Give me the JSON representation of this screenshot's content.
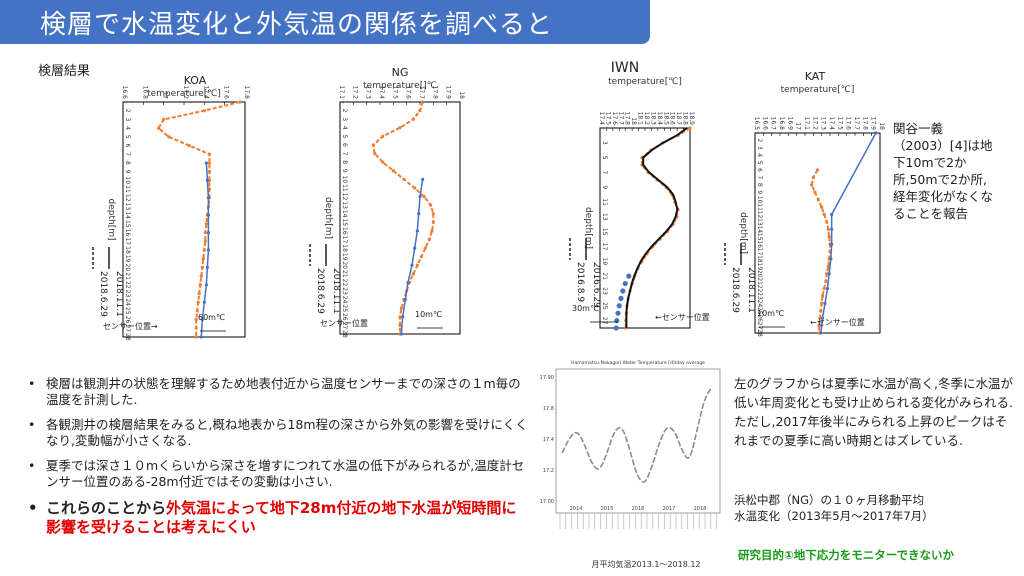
{
  "slide": {
    "title": "検層で水温変化と外気温の関係を調べると",
    "section_label": "検層結果",
    "side_note": "関谷一義（2003）[4]は地下10mで2か所,50mで2か所,経年変化がなくなることを報告",
    "bullets": [
      "検層は観測井の状態を理解するため地表付近から温度センサーまでの深さの１m毎の温度を計測した.",
      "各観測井の検層結果をみると,概ね地表から18m程の深さから外気の影響を受けにくくなり,変動幅が小さくなる.",
      "夏季では深さ１０mくらいから深さを増すにつれて水温の低下がみられるが,温度計センサー位置のある-28m付近ではその変動は小さい."
    ],
    "bullet_emph": {
      "before": "これらのことから",
      "highlight": "外気温によって地下28m付近の地下水温が短時間に影響を受けることは考えにくい"
    },
    "right_text": "左のグラフからは夏季に水温が高く,冬季に水温が低い年周変化とも受け止められる変化がみられる.ただし,2017年後半にみられる上昇のピークはそれまでの夏季に高い時期とはズレている.",
    "caption_line1": "浜松中郡（NG）の１０ヶ月移動平均",
    "caption_line2": "水温変化（2013年5月～2017年7月）",
    "footer": "研究目的①地下応力をモニターできないか"
  },
  "colors": {
    "title_bg": "#4472c4",
    "orange": "#ed7d31",
    "blue": "#4472c4",
    "black": "#111111",
    "gray_line": "#8c8c8c",
    "emphasis_red": "#e00000",
    "footer_green": "#1a9a1a"
  },
  "chart_data": [
    {
      "type": "line",
      "name": "KOA",
      "title": "KOA",
      "xlabel": "temperature[℃]",
      "ylabel": "depth[m]",
      "x_ticks": [
        "16.6",
        "16.8",
        "17",
        "17.2",
        "17.4",
        "17.6",
        "17.8"
      ],
      "xlim": [
        16.6,
        17.8
      ],
      "ylim": [
        1,
        28
      ],
      "legend": [
        "2018.6.29",
        "2018.11.1"
      ],
      "annotations": {
        "sensor": "センサー位置→",
        "delta": "60m℃"
      },
      "series": [
        {
          "name": "2018.6.29",
          "style": "orange-dashed",
          "depth": [
            1,
            2,
            3,
            4,
            5,
            6,
            7,
            8,
            9,
            10,
            11,
            12,
            13,
            14,
            15,
            16,
            17,
            18,
            19,
            20,
            21,
            22,
            23,
            24,
            25,
            26,
            27,
            28
          ],
          "temp": [
            17.75,
            17.4,
            17.0,
            16.95,
            17.05,
            17.25,
            17.45,
            17.45,
            17.45,
            17.45,
            17.45,
            17.45,
            17.44,
            17.43,
            17.42,
            17.41,
            17.41,
            17.4,
            17.39,
            17.38,
            17.37,
            17.36,
            17.35,
            17.34,
            17.33,
            17.32,
            17.32,
            17.32
          ]
        },
        {
          "name": "2018.11.1",
          "style": "blue-solid",
          "depth": [
            8,
            10,
            12,
            14,
            16,
            18,
            20,
            22,
            24,
            26,
            28
          ],
          "temp": [
            17.42,
            17.43,
            17.44,
            17.44,
            17.44,
            17.44,
            17.43,
            17.42,
            17.4,
            17.38,
            17.37
          ]
        }
      ]
    },
    {
      "type": "line",
      "name": "NG",
      "title": "NG",
      "xlabel": "temperature[]℃",
      "ylabel": "depth[m]",
      "x_ticks": [
        "17.1",
        "17.2",
        "17.3",
        "17.4",
        "17.5",
        "17.6",
        "17.7",
        "17.8",
        "17.9",
        "18"
      ],
      "xlim": [
        17.1,
        18.0
      ],
      "ylim": [
        1,
        28
      ],
      "legend": [
        "2018.6.29",
        "2018.11.1"
      ],
      "annotations": {
        "sensor": "センサー位置",
        "delta": "10m℃"
      },
      "series": [
        {
          "name": "2018.6.29",
          "style": "orange-dashed",
          "depth": [
            1,
            2,
            3,
            4,
            5,
            6,
            7,
            8,
            9,
            10,
            11,
            12,
            13,
            14,
            15,
            16,
            17,
            18,
            19,
            20,
            21,
            22,
            23,
            24,
            25,
            26,
            27,
            28
          ],
          "temp": [
            17.72,
            17.7,
            17.65,
            17.55,
            17.42,
            17.35,
            17.36,
            17.42,
            17.5,
            17.58,
            17.66,
            17.73,
            17.78,
            17.8,
            17.8,
            17.79,
            17.77,
            17.74,
            17.71,
            17.68,
            17.65,
            17.62,
            17.6,
            17.58,
            17.56,
            17.55,
            17.55,
            17.55
          ]
        },
        {
          "name": "2018.11.1",
          "style": "blue-solid",
          "depth": [
            10,
            12,
            14,
            16,
            18,
            20,
            22,
            24,
            26,
            28
          ],
          "temp": [
            17.72,
            17.7,
            17.69,
            17.68,
            17.66,
            17.64,
            17.61,
            17.59,
            17.57,
            17.56
          ]
        }
      ]
    },
    {
      "type": "line",
      "name": "IWN",
      "title": "IWN",
      "xlabel": "temperature[℃]",
      "ylabel": "depth[m]",
      "x_ticks": [
        "17.4",
        "17.5",
        "17.6",
        "17.7",
        "17.8",
        "18",
        "18.1",
        "18.2",
        "18.3",
        "18.4",
        "18.5",
        "18.6",
        "18.7",
        "18.8",
        "18.9"
      ],
      "xlim": [
        17.4,
        18.9
      ],
      "ylim": [
        1,
        28
      ],
      "legend": [
        "2016.8.9",
        "2016.6.29"
      ],
      "annotations": {
        "sensor": "←センサー位置",
        "delta": "30m℃"
      },
      "series": [
        {
          "name": "2016.8.9",
          "style": "orange-dashed",
          "depth": [
            1,
            2,
            3,
            4,
            5,
            6,
            7,
            8,
            9,
            10,
            11,
            12,
            13,
            14,
            15,
            16,
            17,
            18,
            19,
            20,
            21,
            22,
            23,
            24,
            25,
            26,
            27,
            28
          ],
          "temp": [
            18.9,
            18.7,
            18.45,
            18.25,
            18.1,
            18.1,
            18.2,
            18.35,
            18.5,
            18.6,
            18.65,
            18.7,
            18.68,
            18.62,
            18.52,
            18.4,
            18.28,
            18.18,
            18.1,
            18.03,
            17.98,
            17.94,
            17.9,
            17.87,
            17.85,
            17.84,
            17.83,
            17.83
          ]
        },
        {
          "name": "2016.6.29",
          "style": "black-solid",
          "depth": [
            1,
            2,
            3,
            4,
            5,
            6,
            7,
            8,
            9,
            10,
            11,
            12,
            13,
            14,
            15,
            16,
            17,
            18,
            19,
            20,
            21,
            22,
            23,
            24,
            25,
            26,
            27,
            28
          ],
          "temp": [
            18.85,
            18.68,
            18.45,
            18.26,
            18.12,
            18.12,
            18.22,
            18.37,
            18.52,
            18.62,
            18.66,
            18.69,
            18.66,
            18.6,
            18.5,
            18.38,
            18.26,
            18.16,
            18.08,
            18.02,
            17.97,
            17.93,
            17.9,
            17.87,
            17.85,
            17.84,
            17.84,
            17.84
          ]
        },
        {
          "name": "markers",
          "style": "blue-dots",
          "depth": [
            21,
            22,
            23,
            24,
            25,
            26,
            27,
            28
          ],
          "temp": [
            17.88,
            17.82,
            17.78,
            17.75,
            17.72,
            17.7,
            17.68,
            17.67
          ]
        }
      ]
    },
    {
      "type": "line",
      "name": "KAT",
      "title": "KAT",
      "xlabel": "temperature[℃]",
      "ylabel": "depth[m]",
      "x_ticks": [
        "16.5",
        "16.6",
        "16.7",
        "16.8",
        "16.9",
        "17",
        "17.1",
        "17.2",
        "17.3",
        "17.4",
        "17.5",
        "17.6",
        "17.7",
        "17.8",
        "17.9",
        "18"
      ],
      "xlim": [
        16.5,
        18.0
      ],
      "ylim": [
        1,
        28
      ],
      "legend": [
        "2018.6.29",
        "2018.11.1"
      ],
      "annotations": {
        "sensor": "←センサー位置",
        "delta": "10m℃"
      },
      "series": [
        {
          "name": "2018.6.29",
          "style": "orange-dashed",
          "depth": [
            6,
            7,
            8,
            9,
            10,
            11,
            12,
            13,
            14,
            15,
            16,
            17,
            18,
            19,
            20,
            21,
            22,
            23,
            24,
            25,
            26,
            27,
            28
          ],
          "temp": [
            17.25,
            17.2,
            17.18,
            17.22,
            17.26,
            17.3,
            17.33,
            17.36,
            17.38,
            17.39,
            17.4,
            17.4,
            17.39,
            17.38,
            17.36,
            17.35,
            17.33,
            17.31,
            17.3,
            17.29,
            17.28,
            17.27,
            17.27
          ]
        },
        {
          "name": "2018.11.1",
          "style": "blue-solid",
          "depth": [
            1,
            12,
            14,
            16,
            18,
            20,
            22,
            24,
            26,
            28
          ],
          "temp": [
            17.95,
            17.42,
            17.42,
            17.42,
            17.41,
            17.39,
            17.37,
            17.34,
            17.31,
            17.29
          ]
        }
      ]
    },
    {
      "type": "line",
      "name": "timeseries",
      "title": "Hamamatsu-Nakagori Water Temperature [d]/day average",
      "xlabel": "月平均気温2013.1～2018.12",
      "ylabel": "",
      "year_labels": [
        "2014",
        "2015",
        "2016",
        "2017",
        "2018"
      ],
      "y_ticks": [
        "17.90",
        "17.8",
        "17.4",
        "17.2",
        "17.00"
      ],
      "series": [
        {
          "name": "water-temp",
          "style": "gray-dashed",
          "x": [
            0,
            0.05,
            0.1,
            0.15,
            0.2,
            0.25,
            0.3,
            0.35,
            0.4,
            0.45,
            0.5,
            0.55,
            0.6,
            0.65,
            0.7,
            0.75,
            0.8,
            0.85,
            0.9,
            0.95,
            1.0
          ],
          "y": [
            0.42,
            0.56,
            0.62,
            0.5,
            0.32,
            0.26,
            0.42,
            0.62,
            0.66,
            0.46,
            0.22,
            0.14,
            0.3,
            0.52,
            0.66,
            0.62,
            0.44,
            0.34,
            0.62,
            0.9,
            1.0
          ]
        }
      ]
    }
  ]
}
